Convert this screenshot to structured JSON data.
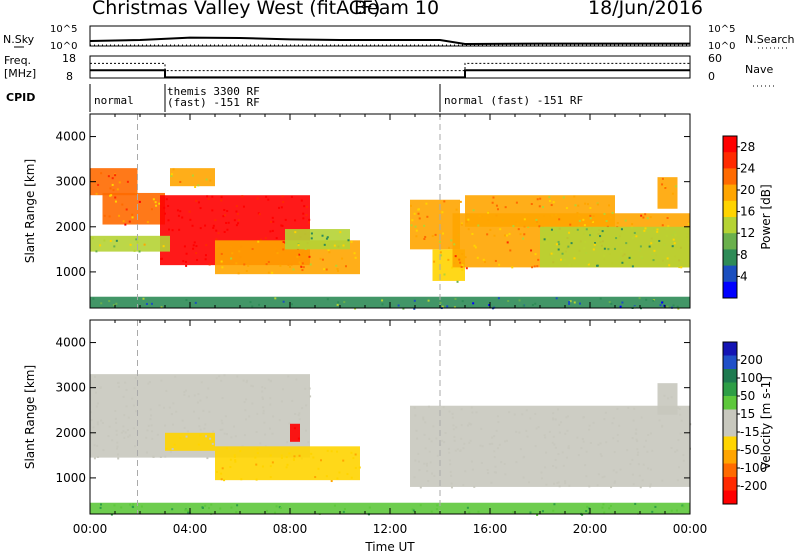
{
  "header": {
    "title": "Christmas Valley West (fitACF)",
    "beam": "Beam 10",
    "date": "18/Jun/2016"
  },
  "chart_data": [
    {
      "panel": "noise",
      "type": "line",
      "left_label": "N.Sky",
      "left_ticks": [
        "10^5",
        "10^0"
      ],
      "right_label": "N.Search",
      "right_ticks": [
        "10^5",
        "10^0"
      ],
      "series": [
        {
          "line": "solid",
          "x": [
            "00:00",
            "02:00",
            "04:00",
            "06:00",
            "08:00",
            "10:00",
            "12:00",
            "14:00",
            "15:00",
            "18:00",
            "21:00",
            "24:00"
          ],
          "y": [
            0.25,
            0.3,
            0.42,
            0.4,
            0.33,
            0.3,
            0.3,
            0.3,
            0.1,
            0.12,
            0.12,
            0.12
          ]
        },
        {
          "line": "dotted",
          "x": [
            "00:00",
            "24:00"
          ],
          "y": [
            0.05,
            0.05
          ]
        }
      ]
    },
    {
      "panel": "frequency",
      "type": "line",
      "left_label": "Freq. [MHz]",
      "left_ticks": [
        "18",
        "8"
      ],
      "right_label": "Nave",
      "right_ticks": [
        "60",
        "0"
      ],
      "series": [
        {
          "name": "Freq",
          "line": "solid",
          "x": [
            "00:00",
            "03:00",
            "03:00",
            "15:00",
            "15:00",
            "24:00"
          ],
          "y": [
            11.5,
            11.5,
            8.3,
            8.3,
            11.5,
            11.5
          ]
        },
        {
          "name": "Nave",
          "line": "dotted",
          "x": [
            "00:00",
            "03:00",
            "03:00",
            "15:00",
            "15:00",
            "24:00"
          ],
          "y": [
            40,
            40,
            20,
            20,
            40,
            40
          ]
        }
      ]
    },
    {
      "panel": "cpid",
      "type": "table",
      "label": "CPID",
      "segments": [
        {
          "start": "00:00",
          "end": "03:00",
          "text": "normal"
        },
        {
          "start": "03:00",
          "end": "14:00",
          "text": "themis 3300 RF",
          "text2": "(fast) -151 RF"
        },
        {
          "start": "14:00",
          "end": "24:00",
          "text": "normal (fast) -151 RF"
        }
      ]
    },
    {
      "panel": "power",
      "type": "heatmap",
      "ylabel": "Slant Range [km]",
      "y_ticks": [
        1000,
        2000,
        3000,
        4000
      ],
      "ylim": [
        200,
        4500
      ],
      "colorbar_label": "Power [dB]",
      "colorbar_ticks": [
        4,
        8,
        12,
        16,
        20,
        24,
        28
      ],
      "colorbar_range": [
        0,
        30
      ],
      "colorbar_colors": [
        "#0000ff",
        "#1b4fbf",
        "#2e8b57",
        "#6ab04c",
        "#b5d334",
        "#ffd400",
        "#ffa500",
        "#ff6a00",
        "#ff2a00",
        "#ff0000"
      ],
      "blobs": [
        {
          "t": [
            0.0,
            1.9
          ],
          "r": [
            2700,
            3300
          ],
          "v": 21
        },
        {
          "t": [
            0.5,
            3.0
          ],
          "r": [
            2050,
            2750
          ],
          "v": 22
        },
        {
          "t": [
            2.8,
            8.8
          ],
          "r": [
            1150,
            2700
          ],
          "v": 30
        },
        {
          "t": [
            0.0,
            3.2
          ],
          "r": [
            1450,
            1800
          ],
          "v": 13
        },
        {
          "t": [
            5.0,
            10.8
          ],
          "r": [
            950,
            1700
          ],
          "v": 20
        },
        {
          "t": [
            7.8,
            10.4
          ],
          "r": [
            1500,
            1950
          ],
          "v": 12
        },
        {
          "t": [
            3.2,
            5.0
          ],
          "r": [
            2900,
            3300
          ],
          "v": 18
        },
        {
          "t": [
            12.8,
            14.8
          ],
          "r": [
            1500,
            2600
          ],
          "v": 18
        },
        {
          "t": [
            13.7,
            15.0
          ],
          "r": [
            800,
            1500
          ],
          "v": 16
        },
        {
          "t": [
            14.5,
            24.0
          ],
          "r": [
            1100,
            2300
          ],
          "v": 20
        },
        {
          "t": [
            15.0,
            21.0
          ],
          "r": [
            2000,
            2700
          ],
          "v": 18
        },
        {
          "t": [
            18.0,
            24.0
          ],
          "r": [
            1100,
            2000
          ],
          "v": 12
        },
        {
          "t": [
            22.7,
            23.5
          ],
          "r": [
            2400,
            3100
          ],
          "v": 20
        },
        {
          "t": [
            0.0,
            24.0
          ],
          "r": [
            200,
            450
          ],
          "v": 8
        }
      ]
    },
    {
      "panel": "velocity",
      "type": "heatmap",
      "ylabel": "Slant Range [km]",
      "y_ticks": [
        1000,
        2000,
        3000,
        4000
      ],
      "ylim": [
        200,
        4500
      ],
      "colorbar_label": "Velocity [m s-1]",
      "colorbar_ticks": [
        200,
        100,
        50,
        15,
        -15,
        -50,
        -100,
        -200
      ],
      "colorbar_range": [
        -250,
        250
      ],
      "colorbar_colors": [
        "#1414b4",
        "#2050c8",
        "#1e7a50",
        "#2e9e46",
        "#5ec83c",
        "#c8c8be",
        "#c8c8be",
        "#ffd400",
        "#ffa500",
        "#ff6a00",
        "#ff2a00",
        "#ff0000"
      ],
      "blobs": [
        {
          "t": [
            0.0,
            8.8
          ],
          "r": [
            1450,
            3300
          ],
          "v": 0
        },
        {
          "t": [
            5.0,
            10.8
          ],
          "r": [
            950,
            1700
          ],
          "v": -70
        },
        {
          "t": [
            3.0,
            5.0
          ],
          "r": [
            1600,
            2000
          ],
          "v": -50
        },
        {
          "t": [
            8.0,
            8.4
          ],
          "r": [
            1800,
            2200
          ],
          "v": -220
        },
        {
          "t": [
            12.8,
            24.0
          ],
          "r": [
            800,
            2600
          ],
          "v": 0
        },
        {
          "t": [
            22.7,
            23.5
          ],
          "r": [
            2400,
            3100
          ],
          "v": 0
        },
        {
          "t": [
            0.0,
            24.0
          ],
          "r": [
            200,
            450
          ],
          "v": 80
        }
      ]
    }
  ],
  "xaxis": {
    "label": "Time UT",
    "ticks": [
      "00:00",
      "04:00",
      "08:00",
      "12:00",
      "16:00",
      "20:00",
      "00:00"
    ],
    "range_hours": [
      0,
      24
    ],
    "mode_boundaries_hours": [
      1.9,
      14.0
    ]
  }
}
